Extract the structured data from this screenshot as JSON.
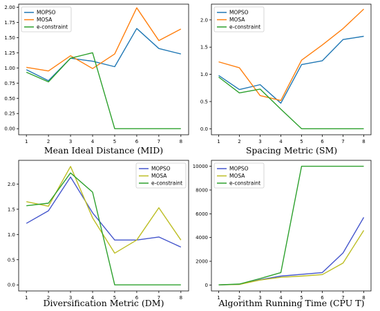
{
  "colors": {
    "blue": "#1f77b4",
    "orange": "#ff7f0e",
    "green": "#2ca02c",
    "olive": "#bcbd22",
    "navy": "#4455cc"
  },
  "chart_data": [
    {
      "type": "line",
      "title": "Mean Ideal Distance (MID)",
      "x": [
        1,
        2,
        3,
        4,
        5,
        6,
        7,
        8
      ],
      "xticks": [
        "1",
        "2",
        "3",
        "4",
        "5",
        "6",
        "7",
        "8"
      ],
      "ylim": [
        -0.1,
        2.05
      ],
      "yticks": [
        "0.00",
        "0.25",
        "0.50",
        "0.75",
        "1.00",
        "1.25",
        "1.50",
        "1.75",
        "2.00"
      ],
      "yticks_values": [
        0,
        0.25,
        0.5,
        0.75,
        1.0,
        1.25,
        1.5,
        1.75,
        2.0
      ],
      "grid": false,
      "legend": "top-left",
      "series": [
        {
          "name": "MOPSO",
          "color": "#1f77b4",
          "values": [
            0.97,
            0.79,
            1.16,
            1.11,
            1.02,
            1.65,
            1.32,
            1.23
          ]
        },
        {
          "name": "MOSA",
          "color": "#ff7f0e",
          "values": [
            1.01,
            0.95,
            1.2,
            0.99,
            1.23,
            1.99,
            1.45,
            1.64
          ]
        },
        {
          "name": "e-constraint",
          "color": "#2ca02c",
          "values": [
            0.93,
            0.77,
            1.16,
            1.25,
            0.0,
            0.0,
            0.0,
            0.0
          ]
        }
      ]
    },
    {
      "type": "line",
      "title": "Spacing Metric (SM)",
      "x": [
        1,
        2,
        3,
        4,
        5,
        6,
        7,
        8
      ],
      "xticks": [
        "1",
        "2",
        "3",
        "4",
        "5",
        "6",
        "7",
        "8"
      ],
      "ylim": [
        -0.11,
        2.29
      ],
      "yticks": [
        "0.0",
        "0.5",
        "1.0",
        "1.5",
        "2.0"
      ],
      "yticks_values": [
        0,
        0.5,
        1.0,
        1.5,
        2.0
      ],
      "grid": false,
      "legend": "top-left",
      "series": [
        {
          "name": "MOPSO",
          "color": "#1f77b4",
          "values": [
            0.98,
            0.72,
            0.81,
            0.47,
            1.18,
            1.25,
            1.64,
            1.7
          ]
        },
        {
          "name": "MOSA",
          "color": "#ff7f0e",
          "values": [
            1.23,
            1.12,
            0.61,
            0.52,
            1.26,
            1.54,
            1.84,
            2.2
          ]
        },
        {
          "name": "e-constraint",
          "color": "#2ca02c",
          "values": [
            0.95,
            0.66,
            0.73,
            0.36,
            0.0,
            0.0,
            0.0,
            0.0
          ]
        }
      ]
    },
    {
      "type": "line",
      "title": "Diversification Metric (DM)",
      "x": [
        1,
        2,
        3,
        4,
        5,
        6,
        7,
        8
      ],
      "xticks": [
        "1",
        "2",
        "3",
        "4",
        "5",
        "6",
        "7",
        "8"
      ],
      "ylim": [
        -0.12,
        2.47
      ],
      "yticks": [
        "0.0",
        "0.5",
        "1.0",
        "1.5",
        "2.0"
      ],
      "yticks_values": [
        0,
        0.5,
        1.0,
        1.5,
        2.0
      ],
      "grid": false,
      "legend": "top-right",
      "series": [
        {
          "name": "MOPSO",
          "color": "#4455cc",
          "values": [
            1.22,
            1.47,
            2.14,
            1.43,
            0.89,
            0.89,
            0.95,
            0.75
          ]
        },
        {
          "name": "MOSA",
          "color": "#bcbd22",
          "values": [
            1.65,
            1.56,
            2.35,
            1.33,
            0.63,
            0.89,
            1.53,
            0.89
          ]
        },
        {
          "name": "e-constraint",
          "color": "#2ca02c",
          "values": [
            1.57,
            1.62,
            2.22,
            1.84,
            0.0,
            0.0,
            0.0,
            0.0
          ]
        }
      ]
    },
    {
      "type": "line",
      "title": "Algorithm Running Time (CPU T)",
      "x": [
        1,
        2,
        3,
        4,
        5,
        6,
        7,
        8
      ],
      "xticks": [
        "1",
        "2",
        "3",
        "4",
        "5",
        "6",
        "7",
        "8"
      ],
      "ylim": [
        -500,
        10500
      ],
      "yticks": [
        "0",
        "2000",
        "4000",
        "6000",
        "8000",
        "10000"
      ],
      "yticks_values": [
        0,
        2000,
        4000,
        6000,
        8000,
        10000
      ],
      "grid": false,
      "legend": "top-left",
      "series": [
        {
          "name": "MOPSO",
          "color": "#4455cc",
          "values": [
            10,
            60,
            450,
            750,
            900,
            1050,
            2700,
            5700
          ]
        },
        {
          "name": "MOSA",
          "color": "#bcbd22",
          "values": [
            10,
            50,
            420,
            650,
            750,
            880,
            1850,
            4600
          ]
        },
        {
          "name": "e-constraint",
          "color": "#2ca02c",
          "values": [
            10,
            80,
            550,
            1050,
            10000,
            10000,
            10000,
            10000
          ]
        }
      ]
    }
  ]
}
